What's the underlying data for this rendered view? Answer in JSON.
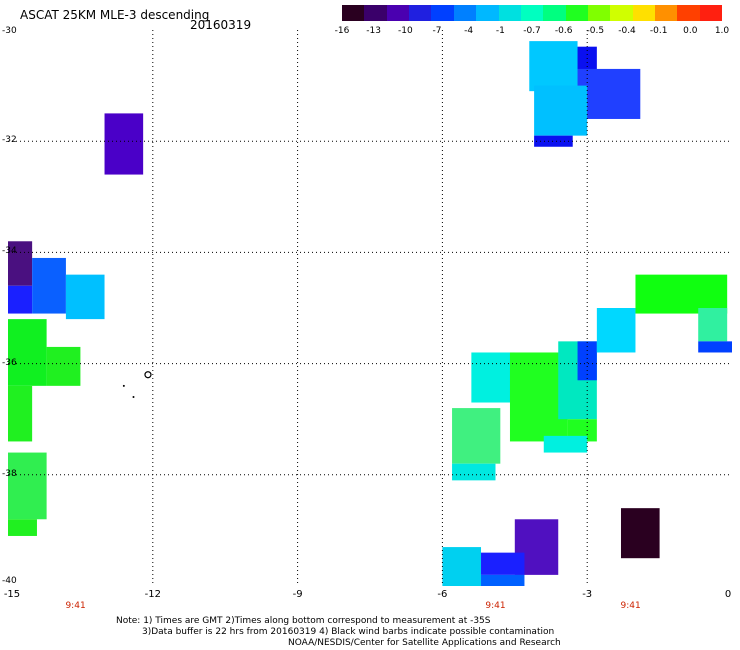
{
  "header": {
    "title": "ASCAT 25KM MLE-3 descending",
    "date": "20160319"
  },
  "colorbar": {
    "colors": [
      "#2a0020",
      "#3a006a",
      "#4a00b0",
      "#2020e0",
      "#0040ff",
      "#0080ff",
      "#00b8ff",
      "#00e0e0",
      "#00ffc0",
      "#00ff80",
      "#20ff20",
      "#80ff00",
      "#d0ff00",
      "#ffe000",
      "#ff9000",
      "#ff4000",
      "#ff2010"
    ],
    "tick_labels": [
      "-16",
      "-13",
      "-10",
      "-7",
      "-4",
      "-1",
      "-0.7",
      "-0.6",
      "-0.5",
      "-0.4",
      "-0.1",
      "0.0",
      "1.0"
    ]
  },
  "map": {
    "lon_range": [
      -15,
      0
    ],
    "lat_range": [
      -40,
      -30
    ],
    "x_ticks": [
      "-15",
      "-12",
      "-9",
      "-6",
      "-3",
      "0"
    ],
    "y_ticks": [
      "-30",
      "-32",
      "-34",
      "-36",
      "-38",
      "-40"
    ],
    "time_labels": [
      {
        "lon": -13.6,
        "label": "9:41"
      },
      {
        "lon": -4.9,
        "label": "9:41"
      },
      {
        "lon": -2.1,
        "label": "9:41"
      }
    ],
    "cells": [
      {
        "lon": [
          -3.3,
          -2.8
        ],
        "lat": [
          -30.3,
          -31.0
        ],
        "color": "#0a10f0"
      },
      {
        "lon": [
          -3.3,
          -1.9
        ],
        "lat": [
          -30.7,
          -31.6
        ],
        "color": "#2040ff"
      },
      {
        "lon": [
          -4.2,
          -3.2
        ],
        "lat": [
          -30.2,
          -31.1
        ],
        "color": "#00c8ff"
      },
      {
        "lon": [
          -4.1,
          -3.0
        ],
        "lat": [
          -31.0,
          -31.9
        ],
        "color": "#00c0ff"
      },
      {
        "lon": [
          -4.1,
          -3.3
        ],
        "lat": [
          -31.9,
          -32.1
        ],
        "color": "#0a10f0"
      },
      {
        "lon": [
          -13.0,
          -12.2
        ],
        "lat": [
          -31.5,
          -32.6
        ],
        "color": "#4a00c8"
      },
      {
        "lon": [
          -15.0,
          -14.5
        ],
        "lat": [
          -33.8,
          -34.6
        ],
        "color": "#4a1080"
      },
      {
        "lon": [
          -15.0,
          -14.5
        ],
        "lat": [
          -34.6,
          -35.1
        ],
        "color": "#1a20ff"
      },
      {
        "lon": [
          -14.5,
          -13.8
        ],
        "lat": [
          -34.1,
          -35.1
        ],
        "color": "#0a60ff"
      },
      {
        "lon": [
          -13.8,
          -13.0
        ],
        "lat": [
          -34.4,
          -35.2
        ],
        "color": "#00c0ff"
      },
      {
        "lon": [
          -15.0,
          -14.2
        ],
        "lat": [
          -35.2,
          -36.4
        ],
        "color": "#10f020"
      },
      {
        "lon": [
          -14.2,
          -13.5
        ],
        "lat": [
          -35.7,
          -36.4
        ],
        "color": "#20f020"
      },
      {
        "lon": [
          -15.0,
          -14.5
        ],
        "lat": [
          -36.4,
          -37.4
        ],
        "color": "#20f020"
      },
      {
        "lon": [
          -15.0,
          -14.2
        ],
        "lat": [
          -37.6,
          -38.8
        ],
        "color": "#30ee50"
      },
      {
        "lon": [
          -15.0,
          -14.4
        ],
        "lat": [
          -38.8,
          -39.1
        ],
        "color": "#20f020"
      },
      {
        "lon": [
          -5.4,
          -4.5
        ],
        "lat": [
          -35.8,
          -36.7
        ],
        "color": "#00f0e0"
      },
      {
        "lon": [
          -4.6,
          -3.4
        ],
        "lat": [
          -35.8,
          -37.4
        ],
        "color": "#20ff20"
      },
      {
        "lon": [
          -3.6,
          -2.8
        ],
        "lat": [
          -35.6,
          -37.0
        ],
        "color": "#00e8c0"
      },
      {
        "lon": [
          -3.2,
          -2.8
        ],
        "lat": [
          -35.6,
          -36.3
        ],
        "color": "#0040ff"
      },
      {
        "lon": [
          -3.4,
          -2.8
        ],
        "lat": [
          -37.0,
          -37.4
        ],
        "color": "#20ff20"
      },
      {
        "lon": [
          -3.9,
          -3.0
        ],
        "lat": [
          -37.3,
          -37.6
        ],
        "color": "#00f0e0"
      },
      {
        "lon": [
          -5.8,
          -4.8
        ],
        "lat": [
          -36.8,
          -37.8
        ],
        "color": "#40f080"
      },
      {
        "lon": [
          -5.8,
          -4.9
        ],
        "lat": [
          -37.8,
          -38.1
        ],
        "color": "#00e8e0"
      },
      {
        "lon": [
          -2.8,
          -2.0
        ],
        "lat": [
          -35.0,
          -35.8
        ],
        "color": "#00d8ff"
      },
      {
        "lon": [
          -2.0,
          -0.1
        ],
        "lat": [
          -34.4,
          -35.1
        ],
        "color": "#10ff10"
      },
      {
        "lon": [
          -0.7,
          -0.1
        ],
        "lat": [
          -35.0,
          -35.6
        ],
        "color": "#30f0a0"
      },
      {
        "lon": [
          -0.7,
          0.0
        ],
        "lat": [
          -35.6,
          -35.8
        ],
        "color": "#0040ff"
      },
      {
        "lon": [
          -2.3,
          -1.5
        ],
        "lat": [
          -38.6,
          -39.5
        ],
        "color": "#2a0020"
      },
      {
        "lon": [
          -4.5,
          -3.6
        ],
        "lat": [
          -38.8,
          -39.8
        ],
        "color": "#5010c0"
      },
      {
        "lon": [
          -5.2,
          -4.3
        ],
        "lat": [
          -39.4,
          -39.8
        ],
        "color": "#1a20ff"
      },
      {
        "lon": [
          -6.0,
          -5.2
        ],
        "lat": [
          -39.3,
          -40.0
        ],
        "color": "#00d0f0"
      },
      {
        "lon": [
          -5.2,
          -4.3
        ],
        "lat": [
          -39.8,
          -40.1
        ],
        "color": "#0060ff"
      }
    ],
    "barbs": [
      {
        "lon": -12.1,
        "lat": -36.2,
        "type": "circle"
      },
      {
        "lon": -12.6,
        "lat": -36.4,
        "type": "dot"
      },
      {
        "lon": -12.4,
        "lat": -36.6,
        "type": "dot"
      }
    ]
  },
  "notes": {
    "line1": "Note: 1) Times are GMT 2)Times along bottom correspond to measurement at -35S",
    "line2": "3)Data buffer is 22 hrs from 20160319 4) Black wind barbs indicate possible contamination",
    "line3": "NOAA/NESDIS/Center for Satellite Applications and Research"
  }
}
